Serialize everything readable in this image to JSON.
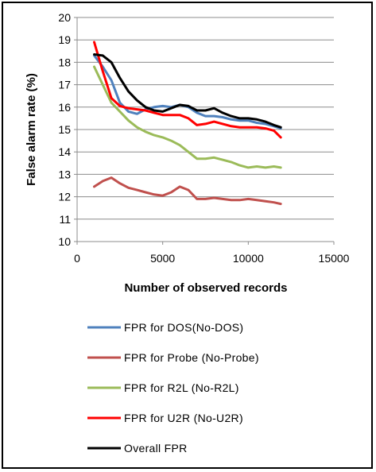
{
  "chart_data": {
    "type": "line",
    "title": "",
    "xlabel": "Number of observed records",
    "ylabel": "False alarm rate (%)",
    "xlim": [
      0,
      15000
    ],
    "ylim": [
      10,
      20
    ],
    "x_ticks": [
      "0",
      "5000",
      "10000",
      "15000"
    ],
    "y_ticks": [
      "10",
      "11",
      "12",
      "13",
      "14",
      "15",
      "16",
      "17",
      "18",
      "19",
      "20"
    ],
    "grid": "horizontal",
    "legend_position": "bottom",
    "series": [
      {
        "name": "FPR for DOS(No-DOS)",
        "color": "#4f81bd",
        "points": [
          [
            1000,
            18.3
          ],
          [
            1500,
            17.8
          ],
          [
            2000,
            17.2
          ],
          [
            2500,
            16.2
          ],
          [
            3000,
            15.8
          ],
          [
            3500,
            15.7
          ],
          [
            4000,
            15.9
          ],
          [
            4500,
            16.0
          ],
          [
            5000,
            16.05
          ],
          [
            5500,
            16.0
          ],
          [
            6000,
            16.1
          ],
          [
            6500,
            16.0
          ],
          [
            7000,
            15.75
          ],
          [
            7500,
            15.6
          ],
          [
            8000,
            15.6
          ],
          [
            8500,
            15.55
          ],
          [
            9000,
            15.45
          ],
          [
            9500,
            15.4
          ],
          [
            10000,
            15.4
          ],
          [
            10500,
            15.3
          ],
          [
            11000,
            15.25
          ],
          [
            11500,
            15.15
          ],
          [
            11900,
            15.05
          ]
        ]
      },
      {
        "name": "FPR for Probe (No-Probe)",
        "color": "#c0504d",
        "points": [
          [
            1000,
            12.45
          ],
          [
            1500,
            12.7
          ],
          [
            2000,
            12.85
          ],
          [
            2500,
            12.6
          ],
          [
            3000,
            12.4
          ],
          [
            3500,
            12.3
          ],
          [
            4000,
            12.2
          ],
          [
            4500,
            12.1
          ],
          [
            5000,
            12.05
          ],
          [
            5500,
            12.2
          ],
          [
            6000,
            12.45
          ],
          [
            6500,
            12.3
          ],
          [
            7000,
            11.9
          ],
          [
            7500,
            11.9
          ],
          [
            8000,
            11.95
          ],
          [
            8500,
            11.9
          ],
          [
            9000,
            11.85
          ],
          [
            9500,
            11.85
          ],
          [
            10000,
            11.9
          ],
          [
            10500,
            11.85
          ],
          [
            11000,
            11.8
          ],
          [
            11500,
            11.75
          ],
          [
            11900,
            11.68
          ]
        ]
      },
      {
        "name": "FPR for R2L  (No-R2L)",
        "color": "#9bbb59",
        "points": [
          [
            1000,
            17.8
          ],
          [
            1500,
            17.0
          ],
          [
            2000,
            16.2
          ],
          [
            2500,
            15.8
          ],
          [
            3000,
            15.4
          ],
          [
            3500,
            15.1
          ],
          [
            4000,
            14.9
          ],
          [
            4500,
            14.75
          ],
          [
            5000,
            14.65
          ],
          [
            5500,
            14.5
          ],
          [
            6000,
            14.3
          ],
          [
            6500,
            14.0
          ],
          [
            7000,
            13.7
          ],
          [
            7500,
            13.7
          ],
          [
            8000,
            13.75
          ],
          [
            8500,
            13.65
          ],
          [
            9000,
            13.55
          ],
          [
            9500,
            13.4
          ],
          [
            10000,
            13.3
          ],
          [
            10500,
            13.35
          ],
          [
            11000,
            13.3
          ],
          [
            11500,
            13.35
          ],
          [
            11900,
            13.3
          ]
        ]
      },
      {
        "name": "FPR for U2R  (No-U2R)",
        "color": "#ff0000",
        "points": [
          [
            1000,
            18.9
          ],
          [
            1500,
            17.6
          ],
          [
            2000,
            16.4
          ],
          [
            2500,
            16.05
          ],
          [
            3000,
            15.95
          ],
          [
            3500,
            15.9
          ],
          [
            4000,
            15.85
          ],
          [
            4500,
            15.75
          ],
          [
            5000,
            15.65
          ],
          [
            5500,
            15.65
          ],
          [
            6000,
            15.65
          ],
          [
            6500,
            15.5
          ],
          [
            7000,
            15.2
          ],
          [
            7500,
            15.25
          ],
          [
            8000,
            15.35
          ],
          [
            8500,
            15.25
          ],
          [
            9000,
            15.15
          ],
          [
            9500,
            15.1
          ],
          [
            10000,
            15.1
          ],
          [
            10500,
            15.1
          ],
          [
            11000,
            15.05
          ],
          [
            11500,
            14.95
          ],
          [
            11900,
            14.65
          ]
        ]
      },
      {
        "name": "Overall FPR",
        "color": "#000000",
        "points": [
          [
            1000,
            18.35
          ],
          [
            1500,
            18.3
          ],
          [
            2000,
            18.0
          ],
          [
            2500,
            17.3
          ],
          [
            3000,
            16.7
          ],
          [
            3500,
            16.3
          ],
          [
            4000,
            16.0
          ],
          [
            4500,
            15.85
          ],
          [
            5000,
            15.8
          ],
          [
            5500,
            15.95
          ],
          [
            6000,
            16.1
          ],
          [
            6500,
            16.05
          ],
          [
            7000,
            15.85
          ],
          [
            7500,
            15.85
          ],
          [
            8000,
            15.95
          ],
          [
            8500,
            15.75
          ],
          [
            9000,
            15.6
          ],
          [
            9500,
            15.5
          ],
          [
            10000,
            15.5
          ],
          [
            10500,
            15.45
          ],
          [
            11000,
            15.35
          ],
          [
            11500,
            15.2
          ],
          [
            11900,
            15.1
          ]
        ]
      }
    ]
  }
}
